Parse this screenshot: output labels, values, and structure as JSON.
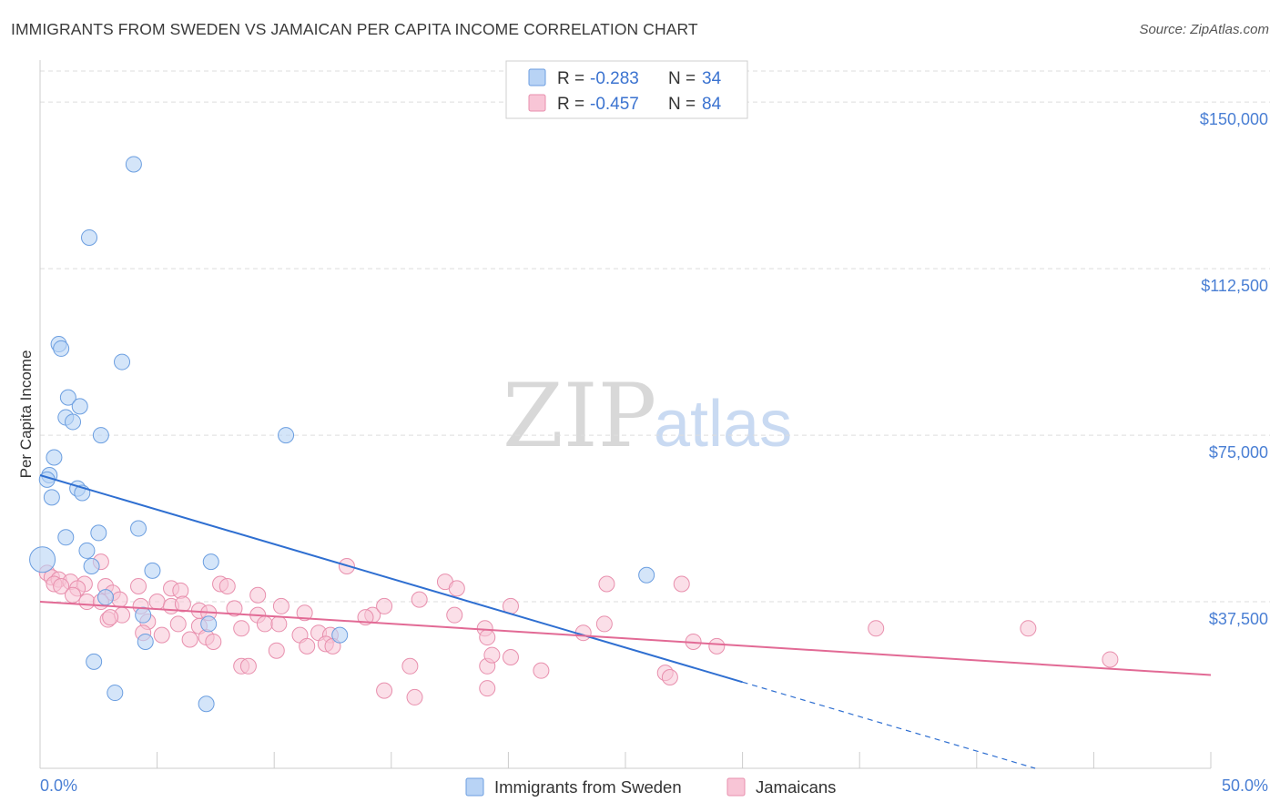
{
  "header": {
    "title": "IMMIGRANTS FROM SWEDEN VS JAMAICAN PER CAPITA INCOME CORRELATION CHART",
    "source": "Source: ZipAtlas.com"
  },
  "watermark": {
    "part1": "ZIP",
    "part2": "atlas"
  },
  "legend": {
    "rows": [
      {
        "r_label": "R =",
        "r_value": "-0.283",
        "n_label": "N =",
        "n_value": "34"
      },
      {
        "r_label": "R =",
        "r_value": "-0.457",
        "n_label": "N =",
        "n_value": "84"
      }
    ]
  },
  "bottom_legend": {
    "items": [
      {
        "label": "Immigrants from Sweden"
      },
      {
        "label": "Jamaicans"
      }
    ]
  },
  "colors": {
    "blue_fill": "#b8d3f5",
    "blue_stroke": "#6b9ee0",
    "blue_line": "#2f6fd1",
    "pink_fill": "#f8c5d6",
    "pink_stroke": "#e88fad",
    "pink_line": "#e26a95",
    "grid": "#dddddd",
    "axis": "#cccccc"
  },
  "chart_data": {
    "type": "scatter",
    "title": "IMMIGRANTS FROM SWEDEN VS JAMAICAN PER CAPITA INCOME CORRELATION CHART",
    "xlabel": "",
    "ylabel": "Per Capita Income",
    "xlim": [
      0,
      50
    ],
    "ylim": [
      0,
      157000
    ],
    "x_tick_labels": [
      "0.0%",
      "50.0%"
    ],
    "y_ticks": [
      {
        "value": 37500,
        "label": "$37,500"
      },
      {
        "value": 75000,
        "label": "$75,000"
      },
      {
        "value": 112500,
        "label": "$112,500"
      },
      {
        "value": 150000,
        "label": "$150,000"
      }
    ],
    "series": [
      {
        "name": "Immigrants from Sweden",
        "color": "#6b9ee0",
        "points": [
          [
            4.0,
            136000
          ],
          [
            2.1,
            119500
          ],
          [
            0.8,
            95500
          ],
          [
            0.9,
            94500
          ],
          [
            3.5,
            91500
          ],
          [
            1.2,
            83500
          ],
          [
            1.7,
            81500
          ],
          [
            1.1,
            79000
          ],
          [
            1.4,
            78000
          ],
          [
            2.6,
            75000
          ],
          [
            10.5,
            75000
          ],
          [
            0.6,
            70000
          ],
          [
            0.4,
            66000
          ],
          [
            0.3,
            65000
          ],
          [
            1.6,
            63000
          ],
          [
            1.8,
            62000
          ],
          [
            0.5,
            61000
          ],
          [
            4.2,
            54000
          ],
          [
            2.5,
            53000
          ],
          [
            1.1,
            52000
          ],
          [
            2.0,
            49000
          ],
          [
            0.1,
            47000
          ],
          [
            7.3,
            46500
          ],
          [
            2.2,
            45500
          ],
          [
            4.8,
            44500
          ],
          [
            25.9,
            43500
          ],
          [
            2.8,
            38500
          ],
          [
            4.4,
            34500
          ],
          [
            7.2,
            32500
          ],
          [
            12.8,
            30000
          ],
          [
            4.5,
            28500
          ],
          [
            2.3,
            24000
          ],
          [
            3.2,
            17000
          ],
          [
            7.1,
            14500
          ]
        ],
        "fit": {
          "x_start": 0,
          "y_start": 66000,
          "x_solid_end": 30,
          "x_end": 42.5,
          "y_end": 0
        }
      },
      {
        "name": "Jamaicans",
        "color": "#e88fad",
        "points": [
          [
            0.3,
            44000
          ],
          [
            0.5,
            43000
          ],
          [
            0.8,
            42500
          ],
          [
            0.6,
            41500
          ],
          [
            1.3,
            42000
          ],
          [
            1.9,
            41500
          ],
          [
            0.9,
            41000
          ],
          [
            1.6,
            40500
          ],
          [
            2.8,
            41000
          ],
          [
            3.1,
            39500
          ],
          [
            4.2,
            41000
          ],
          [
            5.6,
            40500
          ],
          [
            6.0,
            40000
          ],
          [
            7.7,
            41500
          ],
          [
            8.0,
            41000
          ],
          [
            9.3,
            39000
          ],
          [
            2.6,
            46500
          ],
          [
            13.1,
            45500
          ],
          [
            17.3,
            42000
          ],
          [
            17.8,
            40500
          ],
          [
            24.2,
            41500
          ],
          [
            27.4,
            41500
          ],
          [
            1.4,
            39000
          ],
          [
            2.0,
            37500
          ],
          [
            2.6,
            37500
          ],
          [
            3.4,
            38000
          ],
          [
            4.3,
            36500
          ],
          [
            5.0,
            37500
          ],
          [
            5.6,
            36500
          ],
          [
            6.1,
            37000
          ],
          [
            6.8,
            35500
          ],
          [
            7.2,
            35000
          ],
          [
            8.3,
            36000
          ],
          [
            9.3,
            34500
          ],
          [
            10.3,
            36500
          ],
          [
            11.3,
            35000
          ],
          [
            14.2,
            34500
          ],
          [
            14.7,
            36500
          ],
          [
            16.2,
            38000
          ],
          [
            17.7,
            34500
          ],
          [
            20.1,
            36500
          ],
          [
            2.9,
            33500
          ],
          [
            3.5,
            34500
          ],
          [
            4.6,
            33000
          ],
          [
            5.9,
            32500
          ],
          [
            6.8,
            32000
          ],
          [
            8.6,
            31500
          ],
          [
            9.6,
            32500
          ],
          [
            10.2,
            32500
          ],
          [
            11.1,
            30000
          ],
          [
            11.9,
            30500
          ],
          [
            12.4,
            30000
          ],
          [
            13.9,
            34000
          ],
          [
            19.0,
            31500
          ],
          [
            3.0,
            34000
          ],
          [
            4.4,
            30500
          ],
          [
            5.2,
            30000
          ],
          [
            6.4,
            29000
          ],
          [
            7.1,
            29500
          ],
          [
            7.4,
            28500
          ],
          [
            10.1,
            26500
          ],
          [
            11.4,
            27500
          ],
          [
            12.2,
            28000
          ],
          [
            12.5,
            27500
          ],
          [
            19.1,
            29500
          ],
          [
            23.2,
            30500
          ],
          [
            24.1,
            32500
          ],
          [
            27.9,
            28500
          ],
          [
            28.9,
            27500
          ],
          [
            35.7,
            31500
          ],
          [
            42.2,
            31500
          ],
          [
            8.6,
            23000
          ],
          [
            8.9,
            23000
          ],
          [
            15.8,
            23000
          ],
          [
            19.1,
            23000
          ],
          [
            19.3,
            25500
          ],
          [
            20.1,
            25000
          ],
          [
            21.4,
            22000
          ],
          [
            26.7,
            21500
          ],
          [
            26.9,
            20500
          ],
          [
            14.7,
            17500
          ],
          [
            16.0,
            16000
          ],
          [
            19.1,
            18000
          ],
          [
            45.7,
            24500
          ]
        ],
        "fit": {
          "x_start": 0,
          "y_start": 37500,
          "x_end": 50,
          "y_end": 21000
        }
      }
    ],
    "legend_entries": [
      "Immigrants from Sweden",
      "Jamaicans"
    ]
  }
}
